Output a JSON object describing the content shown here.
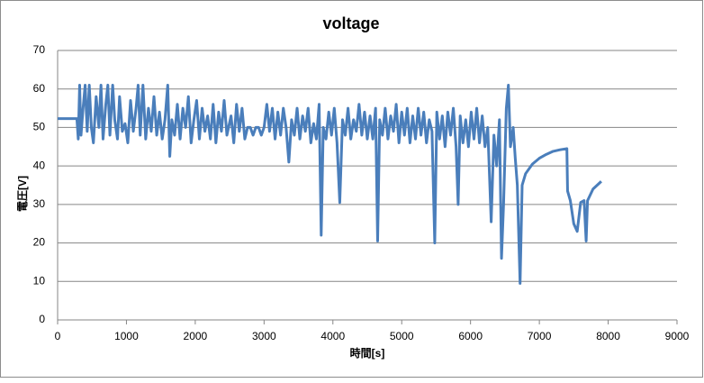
{
  "chart_data": {
    "type": "line",
    "title": "voltage",
    "x_label": "時間[s]",
    "y_label": "電圧[V]",
    "xlim": [
      0,
      9000
    ],
    "xticks": [
      0,
      1000,
      2000,
      3000,
      4000,
      5000,
      6000,
      7000,
      8000,
      9000
    ],
    "ylim": [
      0,
      70
    ],
    "yticks": [
      0,
      10,
      20,
      30,
      40,
      50,
      60,
      70
    ],
    "grid": true,
    "series": [
      {
        "name": "voltage",
        "color": "#4a7ebb",
        "x": [
          0,
          280,
          300,
          320,
          340,
          370,
          400,
          430,
          460,
          490,
          520,
          560,
          600,
          630,
          660,
          700,
          730,
          760,
          800,
          830,
          870,
          900,
          940,
          980,
          1020,
          1060,
          1100,
          1140,
          1170,
          1200,
          1240,
          1280,
          1320,
          1360,
          1400,
          1440,
          1480,
          1520,
          1560,
          1600,
          1630,
          1660,
          1700,
          1740,
          1780,
          1820,
          1860,
          1900,
          1940,
          1980,
          2020,
          2060,
          2100,
          2140,
          2180,
          2220,
          2260,
          2300,
          2340,
          2380,
          2420,
          2460,
          2520,
          2560,
          2600,
          2640,
          2680,
          2720,
          2760,
          2800,
          2840,
          2880,
          2920,
          2960,
          3000,
          3040,
          3080,
          3120,
          3160,
          3200,
          3240,
          3280,
          3320,
          3360,
          3400,
          3440,
          3480,
          3520,
          3560,
          3600,
          3640,
          3680,
          3720,
          3760,
          3800,
          3830,
          3860,
          3900,
          3940,
          3980,
          4020,
          4060,
          4100,
          4140,
          4180,
          4220,
          4260,
          4300,
          4340,
          4380,
          4420,
          4460,
          4500,
          4540,
          4580,
          4620,
          4650,
          4680,
          4720,
          4760,
          4800,
          4840,
          4880,
          4920,
          4960,
          5000,
          5040,
          5080,
          5120,
          5160,
          5200,
          5240,
          5280,
          5320,
          5360,
          5400,
          5440,
          5480,
          5510,
          5550,
          5590,
          5630,
          5670,
          5710,
          5750,
          5790,
          5820,
          5850,
          5890,
          5930,
          5970,
          6010,
          6050,
          6090,
          6130,
          6170,
          6210,
          6250,
          6300,
          6340,
          6380,
          6420,
          6450,
          6480,
          6520,
          6550,
          6580,
          6620,
          6650,
          6680,
          6720,
          6750,
          6800,
          6900,
          7000,
          7100,
          7200,
          7300,
          7400,
          7410,
          7450,
          7500,
          7550,
          7600,
          7650,
          7680,
          7700,
          7780,
          7900
        ],
        "values": [
          52.3,
          52.3,
          47,
          61,
          48,
          55,
          61,
          49,
          61,
          50,
          46,
          58,
          50,
          61,
          47,
          56,
          61,
          48,
          61,
          52,
          47,
          58,
          49,
          51,
          46,
          57,
          49,
          55,
          61,
          48,
          61,
          47,
          55,
          49,
          58,
          48,
          54,
          47,
          52,
          61,
          42.5,
          52,
          48,
          56,
          47,
          55,
          50,
          58,
          46,
          52,
          57,
          47,
          55,
          49,
          53,
          47,
          56,
          46,
          54,
          49,
          57,
          48,
          53,
          46,
          56,
          49,
          55,
          47,
          50,
          50,
          48,
          50,
          50,
          48,
          50,
          56,
          49,
          55,
          47,
          54,
          48,
          55,
          50,
          41,
          52,
          48,
          55,
          47,
          53,
          49,
          55,
          46,
          51,
          47,
          56,
          22,
          50,
          47,
          54,
          48,
          55,
          46,
          30.5,
          52,
          48,
          55,
          47,
          52,
          49,
          56,
          48,
          54,
          47,
          53,
          47,
          55,
          20.5,
          52,
          48,
          55,
          47,
          53,
          49,
          56,
          46,
          54,
          48,
          55,
          46,
          53,
          47,
          55,
          48,
          54,
          46,
          52,
          49,
          20,
          54,
          47,
          53,
          45,
          54,
          48,
          55,
          45,
          30,
          53,
          46,
          52,
          45,
          54,
          47,
          55,
          46,
          53,
          45,
          50,
          25.5,
          48,
          40,
          52,
          16,
          30,
          55,
          61,
          45,
          50,
          42,
          35,
          9.5,
          35,
          38,
          40.5,
          42,
          43,
          43.8,
          44.2,
          44.5,
          33.5,
          31,
          25,
          23,
          30.5,
          31,
          20.5,
          31,
          34,
          36
        ]
      }
    ]
  }
}
